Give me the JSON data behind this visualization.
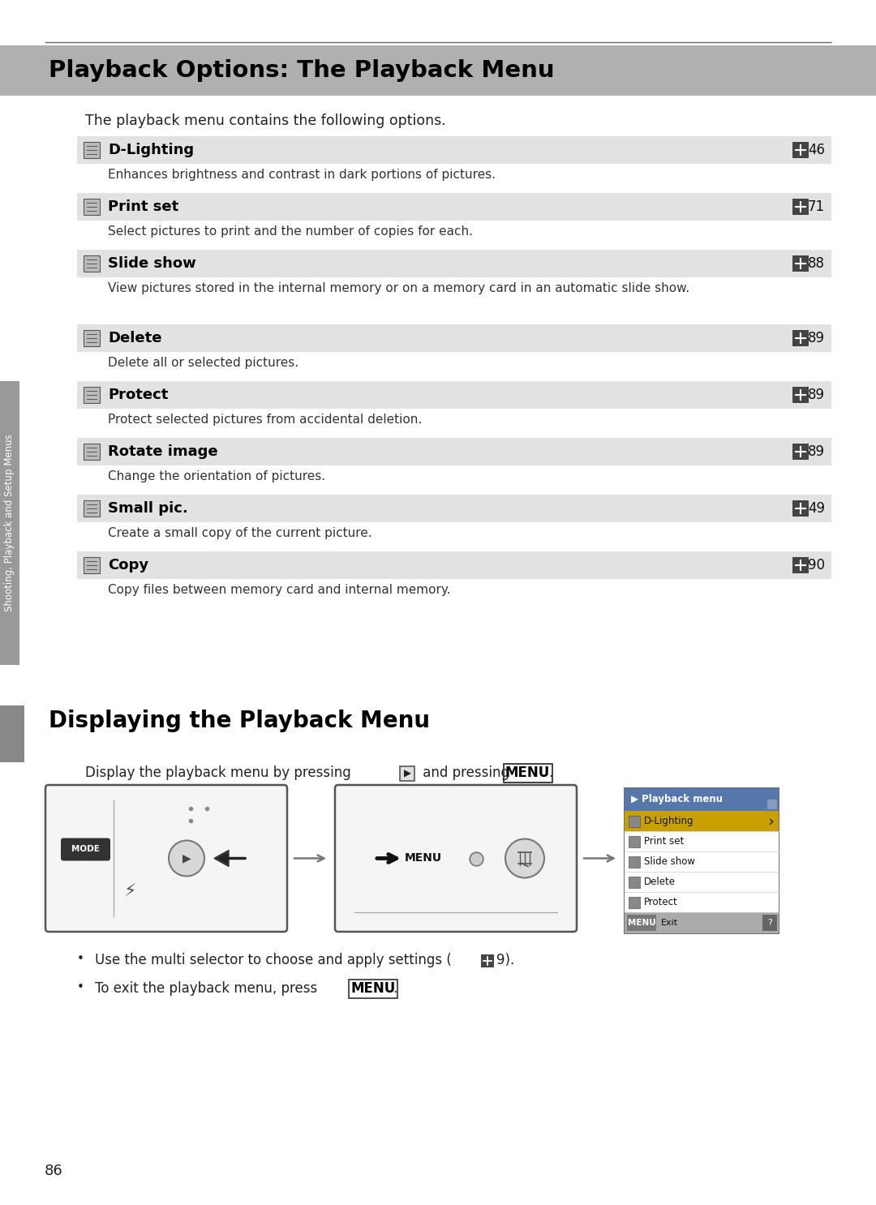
{
  "page_bg": "#ffffff",
  "header_bg": "#b0b0b0",
  "header_text": "Playback Options: The Playback Menu",
  "intro_text": "The playback menu contains the following options.",
  "menu_items": [
    {
      "name": "D-Lighting",
      "page": "46",
      "desc": "Enhances brightness and contrast in dark portions of pictures.",
      "lines": 1
    },
    {
      "name": "Print set",
      "page": "71",
      "desc": "Select pictures to print and the number of copies for each.",
      "lines": 1
    },
    {
      "name": "Slide show",
      "page": "88",
      "desc": "View pictures stored in the internal memory or on a memory card in an automatic slide show.",
      "lines": 2
    },
    {
      "name": "Delete",
      "page": "89",
      "desc": "Delete all or selected pictures.",
      "lines": 1
    },
    {
      "name": "Protect",
      "page": "89",
      "desc": "Protect selected pictures from accidental deletion.",
      "lines": 1
    },
    {
      "name": "Rotate image",
      "page": "89",
      "desc": "Change the orientation of pictures.",
      "lines": 1
    },
    {
      "name": "Small pic.",
      "page": "49",
      "desc": "Create a small copy of the current picture.",
      "lines": 1
    },
    {
      "name": "Copy",
      "page": "90",
      "desc": "Copy files between memory card and internal memory.",
      "lines": 1
    }
  ],
  "row_bg": "#e2e2e2",
  "sidebar_text": "Shooting, Playback and Setup Menus",
  "sidebar_bg": "#999999",
  "section2_title": "Displaying the Playback Menu",
  "playback_menu_items": [
    "D-Lighting",
    "Print set",
    "Slide show",
    "Delete",
    "Protect"
  ],
  "playback_menu_title": "Playback menu",
  "page_number": "86"
}
